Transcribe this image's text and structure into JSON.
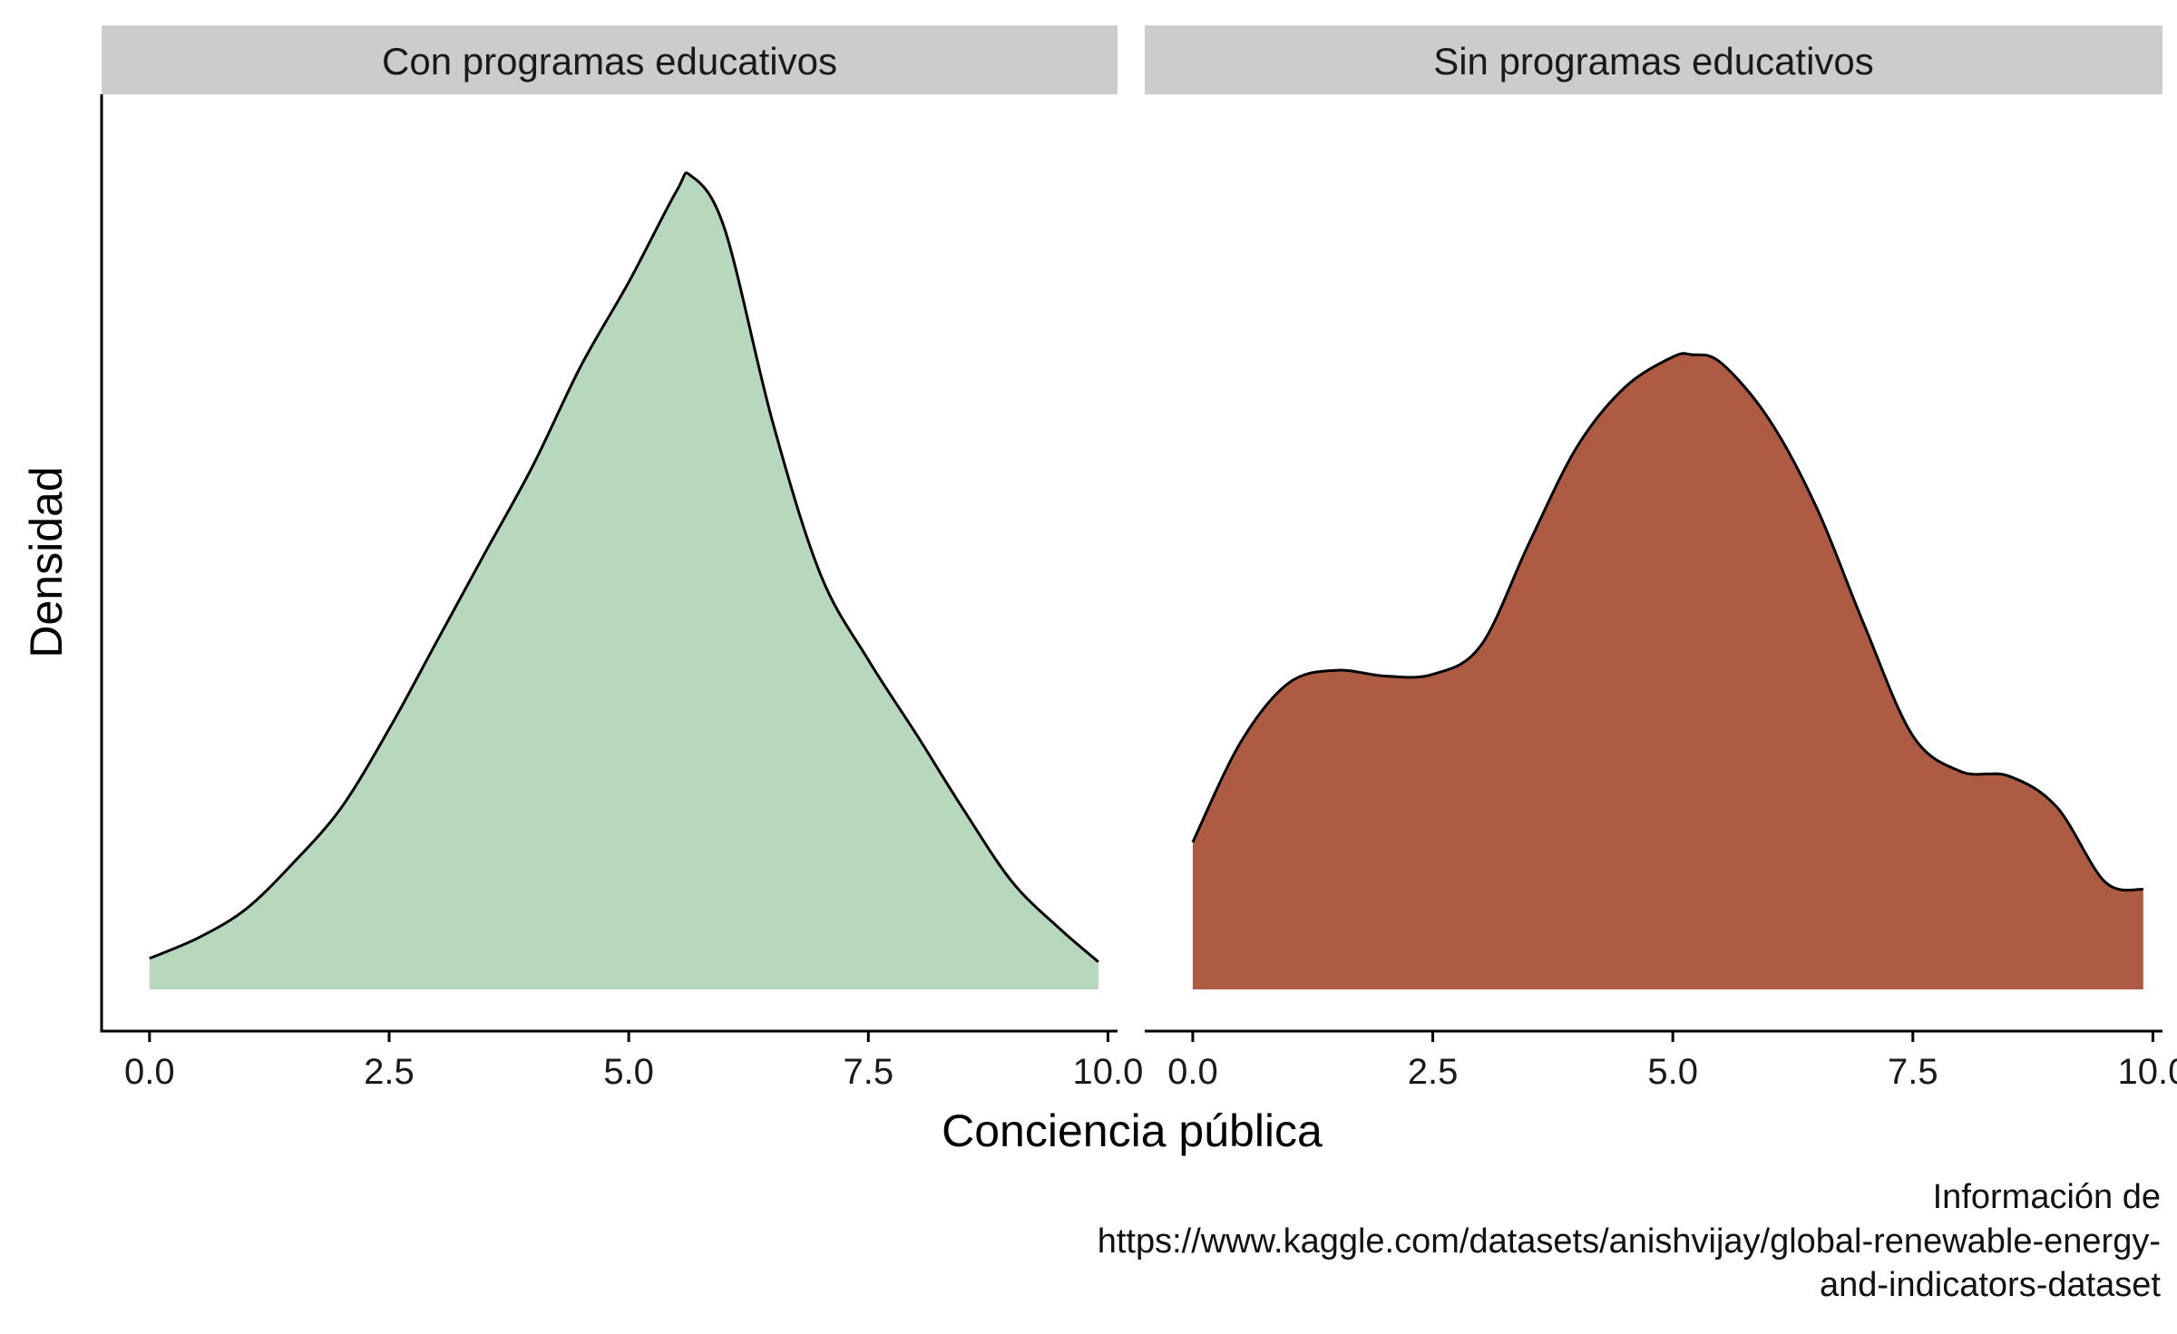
{
  "chart_data": {
    "type": "area",
    "xlabel": "Conciencia pública",
    "ylabel": "Densidad",
    "xlim": [
      -0.5,
      10.1
    ],
    "x_ticks": [
      "0.0",
      "2.5",
      "5.0",
      "7.5",
      "10.0"
    ],
    "x_tick_values": [
      0,
      2.5,
      5,
      7.5,
      10
    ],
    "y_ticks_shown": false,
    "grid": false,
    "legend": "none",
    "panels": [
      {
        "title": "Con programas educativos",
        "color": "#b8d8be",
        "x": [
          0.0,
          0.5,
          1.0,
          1.5,
          2.0,
          2.5,
          3.0,
          3.5,
          4.0,
          4.5,
          5.0,
          5.5,
          5.65,
          6.0,
          6.5,
          7.0,
          7.5,
          8.0,
          8.5,
          9.0,
          9.5,
          9.9
        ],
        "y": [
          0.054,
          0.089,
          0.139,
          0.22,
          0.316,
          0.453,
          0.606,
          0.759,
          0.911,
          1.084,
          1.23,
          1.389,
          1.415,
          1.323,
          0.988,
          0.722,
          0.573,
          0.444,
          0.311,
          0.187,
          0.105,
          0.048
        ]
      },
      {
        "title": "Sin programas educativos",
        "color": "#ad5c43",
        "x": [
          0.0,
          0.5,
          1.0,
          1.5,
          2.0,
          2.5,
          3.0,
          3.5,
          4.0,
          4.5,
          5.0,
          5.2,
          5.5,
          6.0,
          6.5,
          7.0,
          7.5,
          8.0,
          8.5,
          9.0,
          9.5,
          9.9
        ],
        "y": [
          0.256,
          0.43,
          0.533,
          0.555,
          0.545,
          0.548,
          0.598,
          0.775,
          0.943,
          1.047,
          1.1,
          1.104,
          1.09,
          0.992,
          0.837,
          0.631,
          0.441,
          0.379,
          0.371,
          0.317,
          0.187,
          0.174
        ]
      }
    ]
  },
  "caption": {
    "line1": "Información de",
    "line2": "https://www.kaggle.com/datasets/anishvijay/global-renewable-energy-",
    "line3": "and-indicators-dataset"
  }
}
